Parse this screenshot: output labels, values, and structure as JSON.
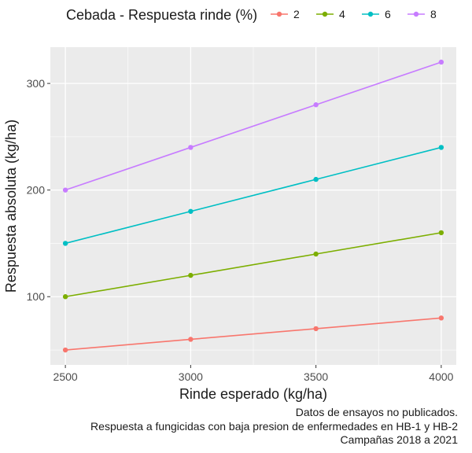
{
  "chart_data": {
    "type": "line",
    "legend_title": "Cebada - Respuesta rinde (%)",
    "legend_position": "top",
    "xlabel": "Rinde esperado (kg/ha)",
    "ylabel": "Respuesta absoluta (kg/ha)",
    "x": [
      2500,
      3000,
      3500,
      4000
    ],
    "xlim": [
      2440,
      4060
    ],
    "ylim": [
      36,
      334
    ],
    "x_ticks": [
      2500,
      3000,
      3500,
      4000
    ],
    "y_ticks": [
      100,
      200,
      300
    ],
    "grid": true,
    "series": [
      {
        "name": "2",
        "color": "#f8766d",
        "values": [
          50,
          60,
          70,
          80
        ]
      },
      {
        "name": "4",
        "color": "#7cae00",
        "values": [
          100,
          120,
          140,
          160
        ]
      },
      {
        "name": "6",
        "color": "#00bfc4",
        "values": [
          150,
          180,
          210,
          240
        ]
      },
      {
        "name": "8",
        "color": "#c77cff",
        "values": [
          200,
          240,
          280,
          320
        ]
      }
    ],
    "panel_color": "#ebebeb",
    "grid_color": "#ffffff"
  },
  "caption": [
    "Datos de ensayos no publicados.",
    "Respuesta a fungicidas con baja presion de enfermedades en HB-1 y HB-2",
    "Campañas 2018 a 2021"
  ]
}
